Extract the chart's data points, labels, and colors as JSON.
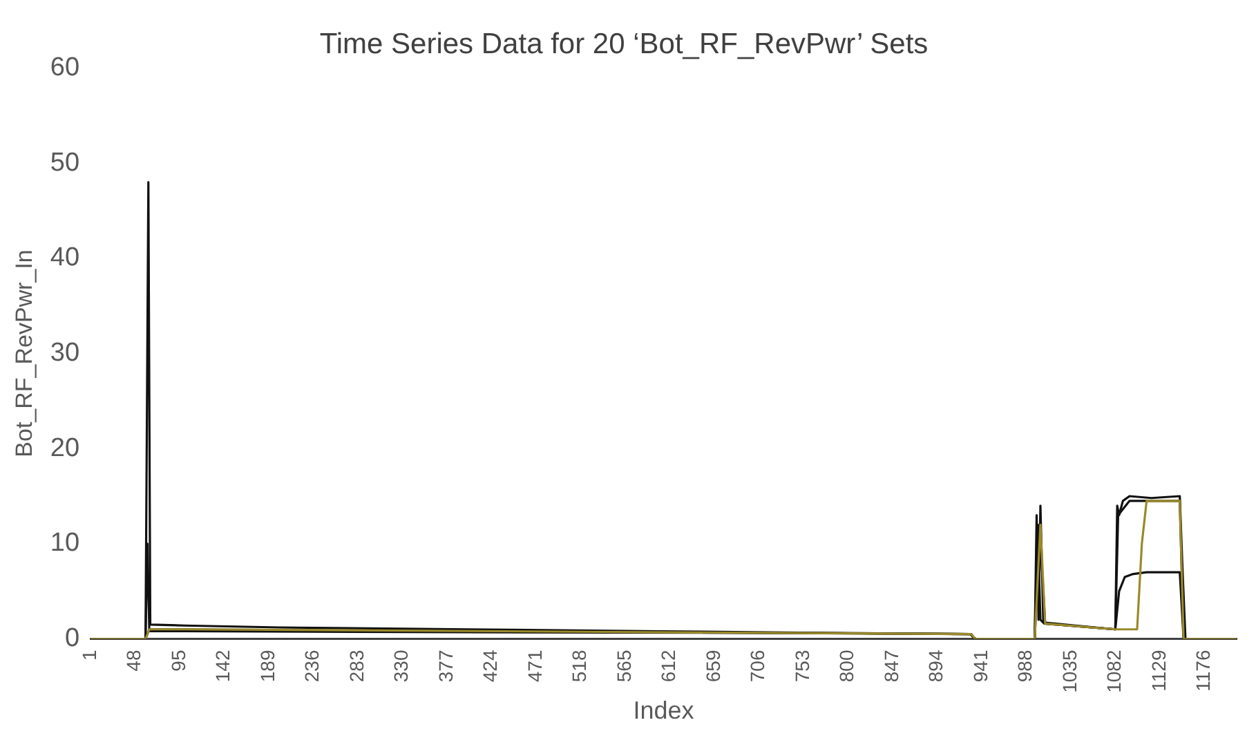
{
  "chart_data": {
    "type": "line",
    "title": "Time Series Data for 20 ‘Bot_RF_RevPwr’ Sets",
    "xlabel": "Index",
    "ylabel": "Bot_RF_RevPwr_In",
    "xlim": [
      1,
      1210
    ],
    "xticks": [
      1,
      48,
      95,
      142,
      189,
      236,
      283,
      330,
      377,
      424,
      471,
      518,
      565,
      612,
      659,
      706,
      753,
      800,
      847,
      894,
      941,
      988,
      1035,
      1082,
      1129,
      1176
    ],
    "ylim": [
      0,
      60
    ],
    "yticks": [
      0,
      10,
      20,
      30,
      40,
      50,
      60
    ],
    "grid": false,
    "legend": false,
    "marker": "none",
    "line_style": "solid",
    "series": [
      {
        "color": "#111111",
        "x": [
          1,
          59,
          62,
          64,
          100,
          200,
          400,
          600,
          800,
          929,
          932,
          935,
          997,
          999,
          1001,
          1003,
          1006,
          1008,
          1040,
          1082,
          1084,
          1086,
          1090,
          1097,
          1120,
          1150,
          1153,
          1156,
          1210
        ],
        "values": [
          0,
          0,
          48,
          1.5,
          1.4,
          1.2,
          1,
          0.8,
          0.6,
          0.5,
          0.2,
          0,
          0,
          13,
          2,
          14,
          2,
          1.7,
          1.4,
          1,
          14,
          13,
          14.5,
          15,
          14.8,
          15,
          7,
          0,
          0
        ]
      },
      {
        "color": "#111111",
        "x": [
          1,
          59,
          61,
          63,
          100,
          400,
          800,
          930,
          933,
          997,
          1000,
          1003,
          1007,
          1082,
          1085,
          1097,
          1150,
          1154,
          1157,
          1210
        ],
        "values": [
          0,
          0,
          10,
          0.8,
          0.8,
          0.7,
          0.6,
          0.5,
          0,
          0,
          12,
          2,
          1.6,
          1,
          13,
          14.5,
          14.5,
          0,
          0,
          0
        ]
      },
      {
        "color": "#111111",
        "x": [
          1,
          59,
          63,
          930,
          934,
          997,
          1002,
          1008,
          1082,
          1086,
          1092,
          1100,
          1115,
          1150,
          1154,
          1210
        ],
        "values": [
          0,
          0,
          1,
          0.5,
          0,
          0,
          12,
          1.6,
          1,
          5,
          6.5,
          6.8,
          7,
          7,
          0,
          0
        ]
      },
      {
        "color": "#9a8a2a",
        "x": [
          1,
          59,
          63,
          100,
          930,
          934,
          997,
          1003,
          1008,
          1082,
          1105,
          1110,
          1115,
          1150,
          1154,
          1210
        ],
        "values": [
          0,
          0,
          1,
          1,
          0.5,
          0,
          0,
          12,
          1.6,
          1,
          1,
          10,
          14.5,
          14.5,
          0,
          0
        ]
      }
    ]
  }
}
